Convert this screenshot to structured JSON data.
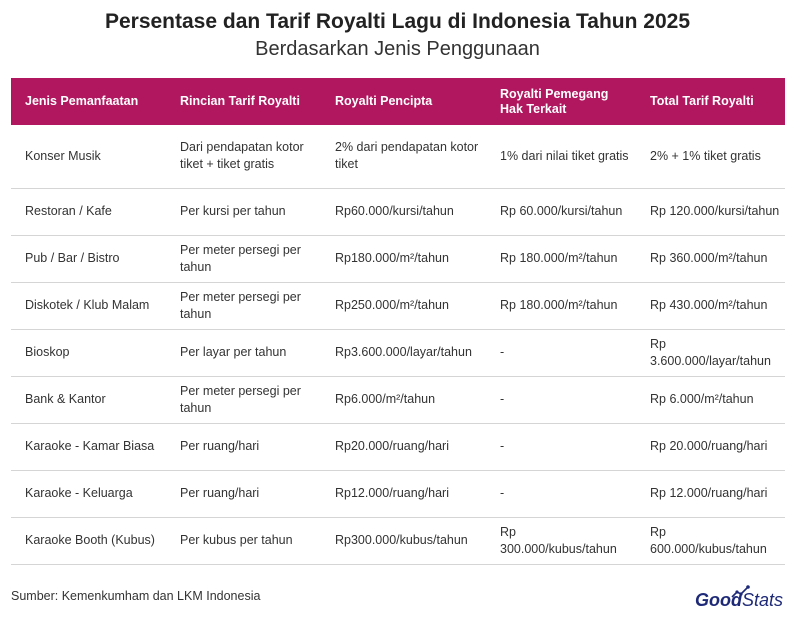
{
  "header": {
    "title": "Persentase dan Tarif Royalti Lagu di Indonesia Tahun 2025",
    "subtitle": "Berdasarkan Jenis Penggunaan"
  },
  "table": {
    "columns": [
      "Jenis Pemanfaatan",
      "Rincian Tarif Royalti",
      "Royalti Pencipta",
      "Royalti Pemegang Hak Terkait",
      "Total Tarif Royalti"
    ],
    "rows": [
      [
        "Konser Musik",
        "Dari pendapatan kotor tiket + tiket gratis",
        "2% dari pendapatan kotor tiket",
        "1% dari nilai tiket gratis",
        "2% + 1% tiket gratis"
      ],
      [
        "Restoran / Kafe",
        "Per kursi per tahun",
        "Rp60.000/kursi/tahun",
        "Rp 60.000/kursi/tahun",
        "Rp 120.000/kursi/tahun"
      ],
      [
        "Pub / Bar / Bistro",
        "Per meter persegi per tahun",
        "Rp180.000/m²/tahun",
        "Rp 180.000/m²/tahun",
        "Rp 360.000/m²/tahun"
      ],
      [
        "Diskotek / Klub Malam",
        "Per meter persegi per tahun",
        "Rp250.000/m²/tahun",
        "Rp 180.000/m²/tahun",
        "Rp 430.000/m²/tahun"
      ],
      [
        "Bioskop",
        "Per layar per tahun",
        "Rp3.600.000/layar/tahun",
        "-",
        "Rp 3.600.000/layar/tahun"
      ],
      [
        "Bank & Kantor",
        "Per meter persegi per tahun",
        "Rp6.000/m²/tahun",
        "-",
        "Rp 6.000/m²/tahun"
      ],
      [
        "Karaoke - Kamar Biasa",
        "Per ruang/hari",
        "Rp20.000/ruang/hari",
        "-",
        "Rp 20.000/ruang/hari"
      ],
      [
        "Karaoke - Keluarga",
        "Per ruang/hari",
        "Rp12.000/ruang/hari",
        "-",
        "Rp 12.000/ruang/hari"
      ],
      [
        "Karaoke Booth (Kubus)",
        "Per kubus per tahun",
        "Rp300.000/kubus/tahun",
        "Rp 300.000/kubus/tahun",
        "Rp 600.000/kubus/tahun"
      ]
    ]
  },
  "footer": {
    "source": "Sumber: Kemenkumham dan LKM Indonesia",
    "logo_good": "Good",
    "logo_stats": "Stats",
    "logo_icon": "chart-trend-icon",
    "logo_color": "#1e2a78"
  },
  "colors": {
    "header_bg": "#b0175f",
    "header_text": "#ffffff",
    "row_divider": "#d5d5d5"
  }
}
